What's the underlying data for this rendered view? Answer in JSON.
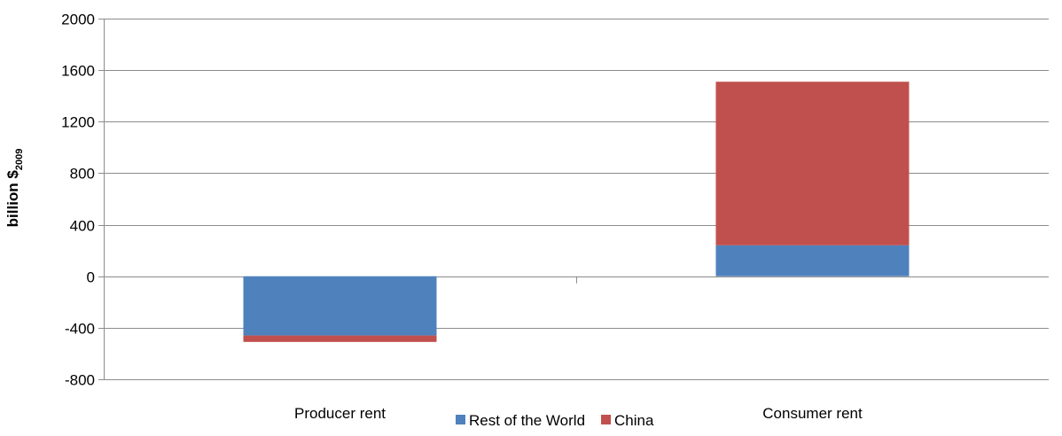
{
  "chart_data": {
    "type": "bar",
    "stacked": true,
    "title": "",
    "xlabel": "",
    "ylabel": {
      "main": "billion $",
      "subscript": "2009"
    },
    "categories": [
      "Producer rent",
      "Consumer rent"
    ],
    "series": [
      {
        "name": "Rest of the World",
        "color": "#4F81BD",
        "values": [
          -460,
          240
        ]
      },
      {
        "name": "China",
        "color": "#C0504D",
        "values": [
          -50,
          1270
        ]
      }
    ],
    "ylim": [
      -800,
      2000
    ],
    "yticks": [
      2000,
      1600,
      1200,
      800,
      400,
      0,
      -400,
      -800
    ],
    "grid": true,
    "legend": "bottom"
  }
}
